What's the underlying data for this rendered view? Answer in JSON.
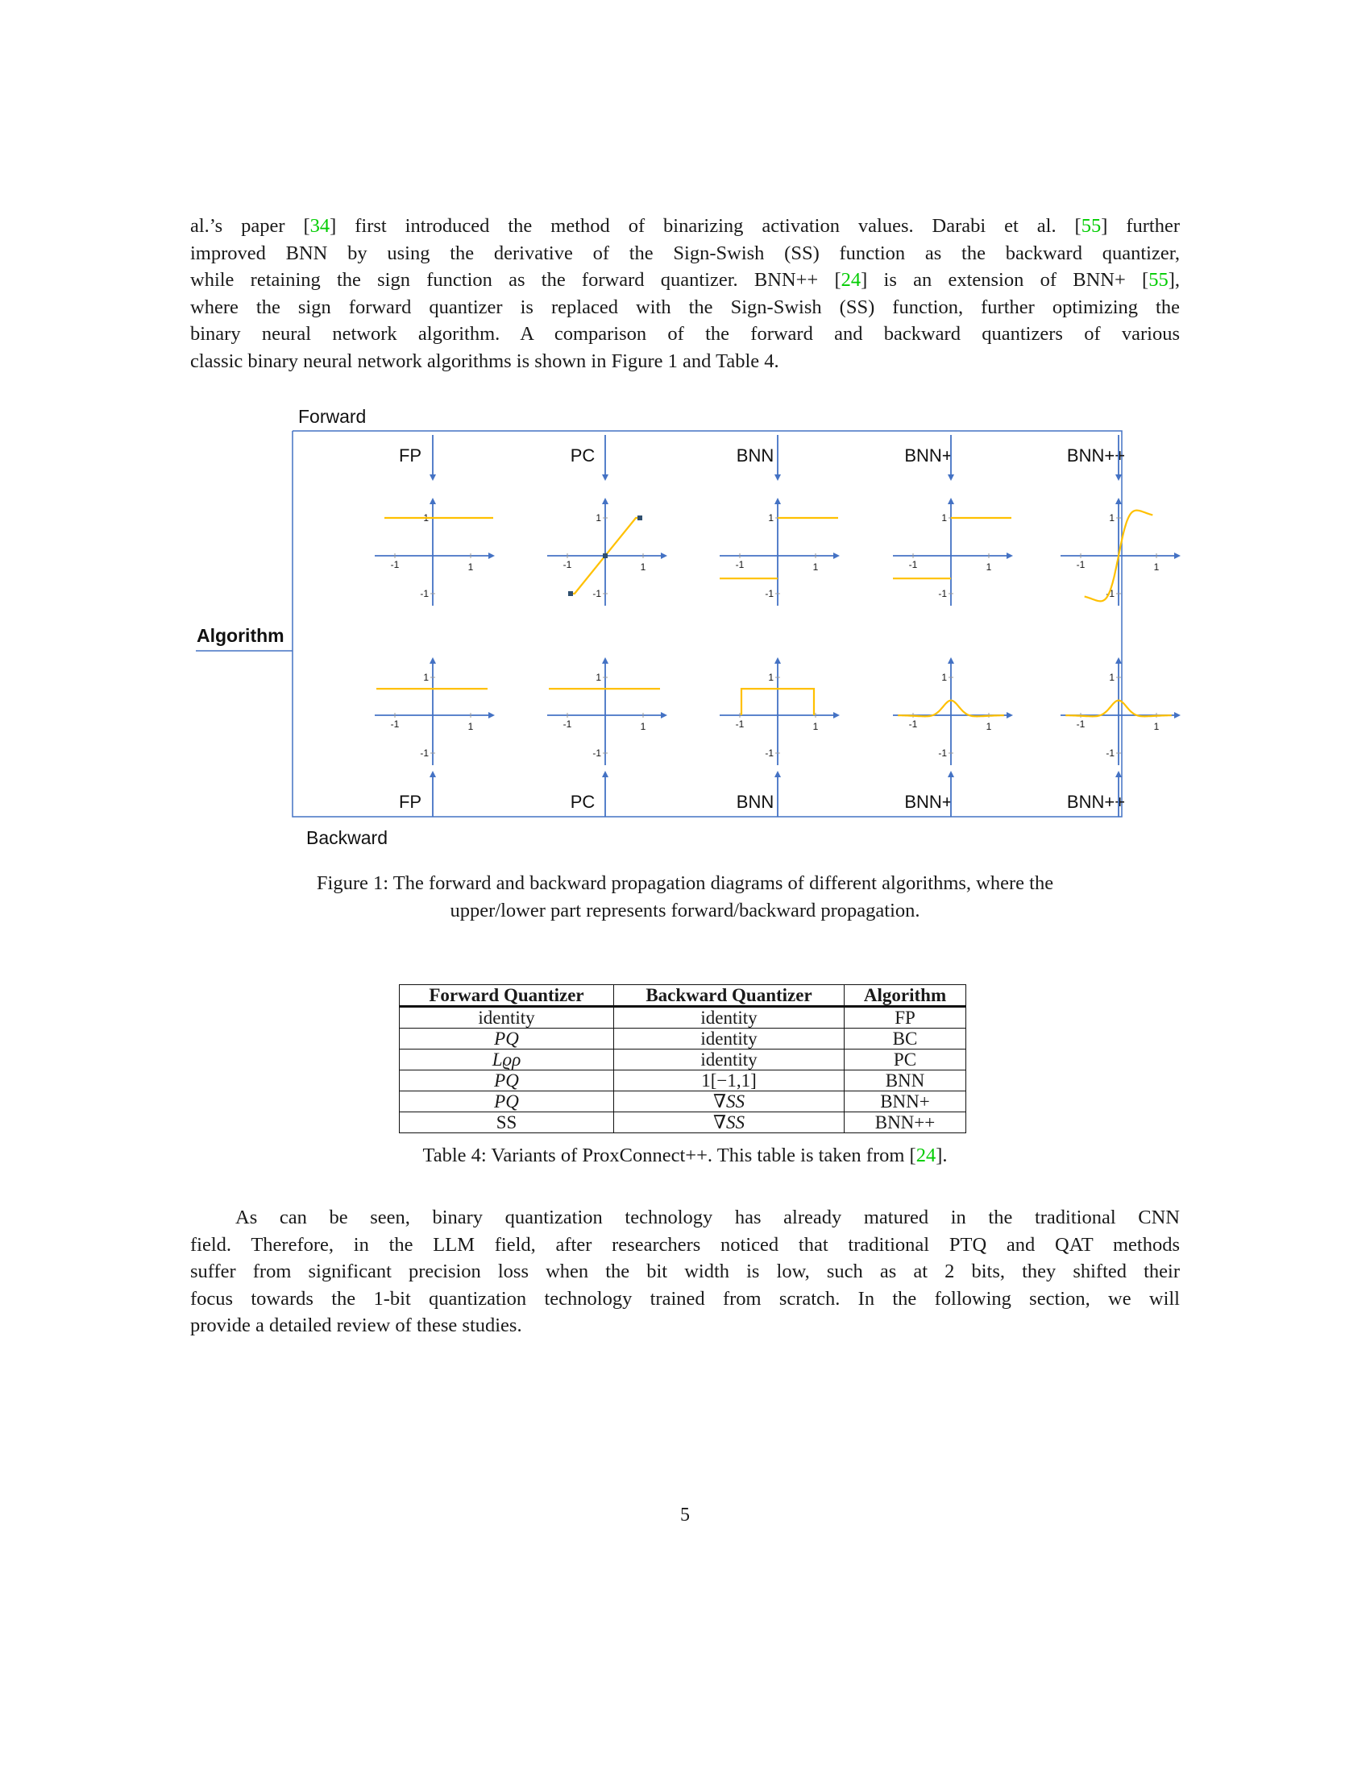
{
  "paragraph1": {
    "lines": [
      [
        "al.’s paper [",
        {
          "cite": "34"
        },
        "] first introduced the method of binarizing activation values. Darabi et al. [",
        {
          "cite": "55"
        },
        "] further"
      ],
      [
        "improved BNN by using the derivative of the Sign-Swish (SS) function as the backward quantizer,"
      ],
      [
        "while retaining the sign function as the forward quantizer. BNN++ [",
        {
          "cite": "24"
        },
        "] is an extension of BNN+ [",
        {
          "cite": "55"
        },
        "],"
      ],
      [
        "where the sign forward quantizer is replaced with the Sign-Swish (SS) function, further optimizing the"
      ],
      [
        "binary neural network algorithm. A comparison of the forward and backward quantizers of various"
      ],
      [
        "classic binary neural network algorithms is shown in Figure 1 and Table 4."
      ]
    ]
  },
  "figure": {
    "forward_label": "Forward",
    "backward_label": "Backward",
    "algorithm_label": "Algorithm",
    "forward_titles": [
      "FP",
      "PC",
      "BNN",
      "BNN+",
      "BNN++"
    ],
    "backward_titles": [
      "FP",
      "PC",
      "BNN",
      "BNN+",
      "BNN++"
    ],
    "tick_pos": "1",
    "tick_neg": "-1",
    "colors": {
      "axis": "#4472C4",
      "curve": "#FFC000",
      "frame": "#4472C4",
      "marker": "#2F4F6F"
    },
    "caption_line1": "Figure 1: The forward and backward propagation diagrams of different algorithms, where the",
    "caption_line2": "upper/lower part represents forward/backward propagation."
  },
  "table": {
    "headers": [
      "Forward Quantizer",
      "Backward Quantizer",
      "Algorithm"
    ],
    "rows": [
      {
        "forward": "identity",
        "forward_math": false,
        "backward": "identity",
        "backward_math": false,
        "algorithm": "FP"
      },
      {
        "forward": "PQ",
        "forward_math": true,
        "backward": "identity",
        "backward_math": false,
        "algorithm": "BC"
      },
      {
        "forward": "Lϱρ",
        "forward_math": true,
        "backward": "identity",
        "backward_math": false,
        "algorithm": "PC"
      },
      {
        "forward": "PQ",
        "forward_math": true,
        "backward": "1[−1,1]",
        "backward_math": false,
        "algorithm": "BNN"
      },
      {
        "forward": "PQ",
        "forward_math": true,
        "backward": "∇SS",
        "backward_math": true,
        "algorithm": "BNN+"
      },
      {
        "forward": "SS",
        "forward_math": false,
        "backward": "∇SS",
        "backward_math": true,
        "algorithm": "BNN++"
      }
    ],
    "caption_prefix": "Table 4: Variants of ProxConnect++. This table is taken from [",
    "caption_cite": "24",
    "caption_suffix": "]."
  },
  "paragraph2": {
    "lines": [
      "As can be seen, binary quantization technology has already matured in the traditional CNN",
      "field. Therefore, in the LLM field, after researchers noticed that traditional PTQ and QAT methods",
      "suffer from significant precision loss when the bit width is low, such as at 2 bits, they shifted their",
      "focus towards the 1-bit quantization technology trained from scratch. In the following section, we will",
      "provide a detailed review of these studies."
    ]
  },
  "page_number": "5"
}
